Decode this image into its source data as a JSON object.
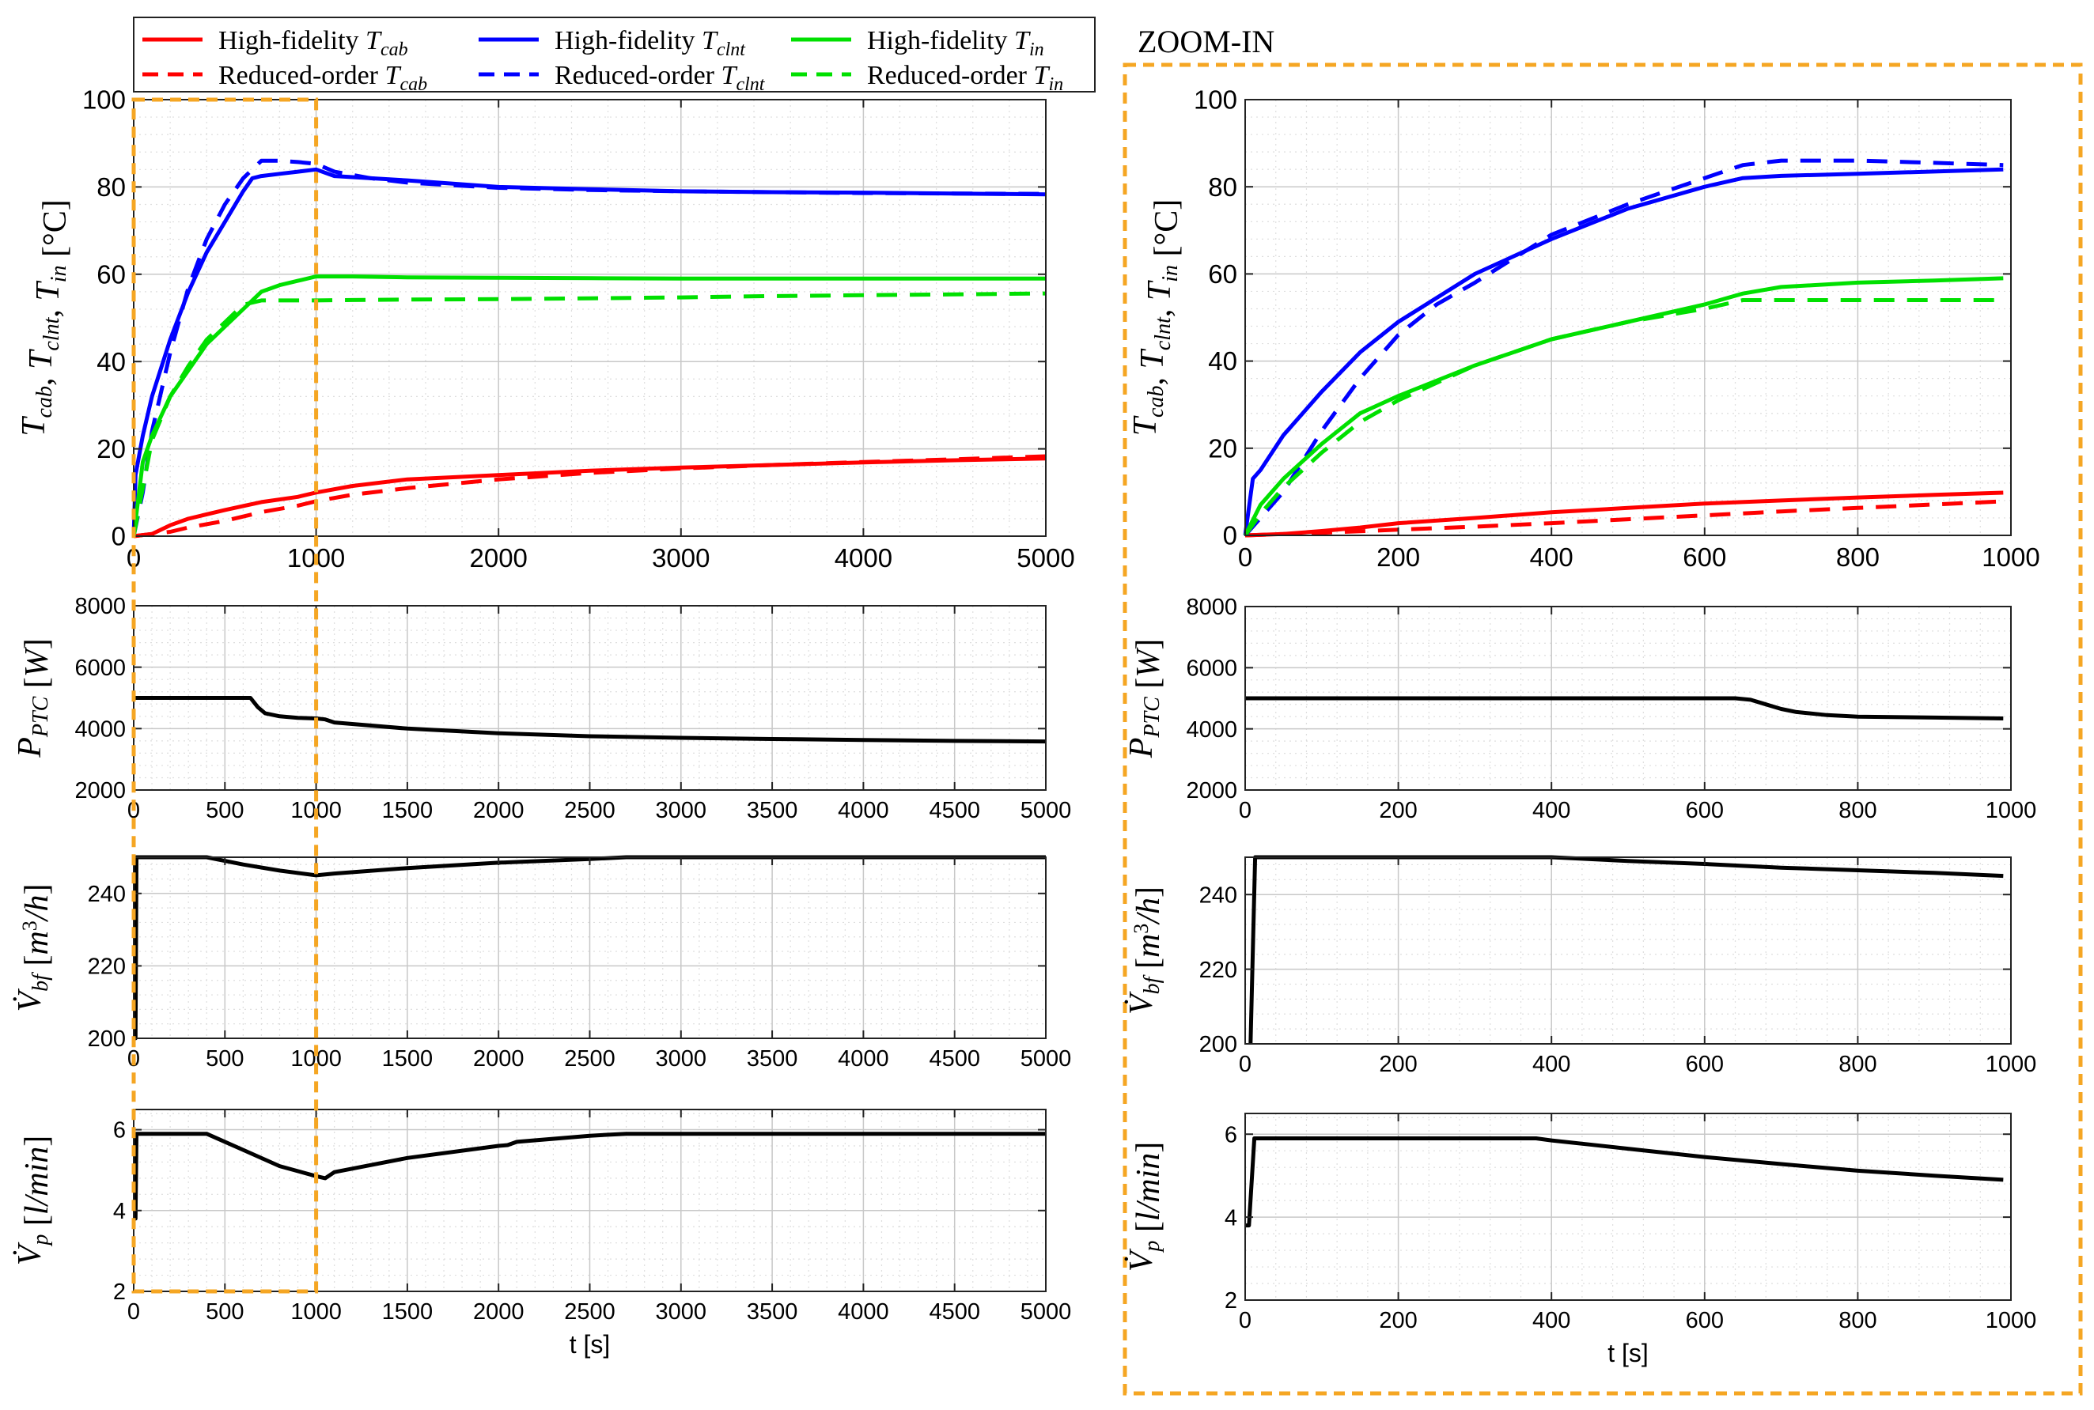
{
  "figure": {
    "zoom_title": "ZOOM-IN",
    "colors": {
      "cab": "#ff0000",
      "clnt": "#0000ff",
      "in": "#00e000",
      "black": "#000000",
      "zoom_box": "#f5a623",
      "grid": "#c8c8c8",
      "minor_grid": "#dedede"
    }
  },
  "legend": {
    "entries": [
      {
        "series": "hf_cab",
        "prefix": "High-fidelity",
        "sym": "T",
        "sub": "cab",
        "style": "solid",
        "color": "#ff0000"
      },
      {
        "series": "hf_clnt",
        "prefix": "High-fidelity",
        "sym": "T",
        "sub": "clnt",
        "style": "solid",
        "color": "#0000ff"
      },
      {
        "series": "hf_in",
        "prefix": "High-fidelity",
        "sym": "T",
        "sub": "in",
        "style": "solid",
        "color": "#00e000"
      },
      {
        "series": "ro_cab",
        "prefix": "Reduced-order",
        "sym": "T",
        "sub": "cab",
        "style": "dashed",
        "color": "#ff0000"
      },
      {
        "series": "ro_clnt",
        "prefix": "Reduced-order",
        "sym": "T",
        "sub": "clnt",
        "style": "dashed",
        "color": "#0000ff"
      },
      {
        "series": "ro_in",
        "prefix": "Reduced-order",
        "sym": "T",
        "sub": "in",
        "style": "dashed",
        "color": "#00e000"
      }
    ]
  },
  "chart_data": [
    {
      "id": "temp_full",
      "type": "line",
      "panel": "left",
      "xlim": [
        0,
        5000
      ],
      "ylim": [
        0,
        100
      ],
      "xticks": [
        0,
        1000,
        2000,
        3000,
        4000,
        5000
      ],
      "yticks": [
        0,
        20,
        40,
        60,
        80,
        100
      ],
      "ylabel": "T_cab, T_clnt, T_in [°C]",
      "xlabel": "",
      "grid": true,
      "series": [
        {
          "name": "High-fidelity T_cab",
          "color": "#ff0000",
          "style": "solid",
          "x": [
            0,
            100,
            200,
            300,
            500,
            700,
            900,
            1000,
            1200,
            1500,
            2000,
            2500,
            3000,
            3500,
            4000,
            4500,
            5000
          ],
          "y": [
            0,
            0.5,
            2.5,
            4,
            6,
            7.8,
            9,
            10,
            11.5,
            13,
            14,
            15,
            15.7,
            16.3,
            16.9,
            17.4,
            17.8
          ]
        },
        {
          "name": "Reduced-order T_cab",
          "color": "#ff0000",
          "style": "dashed",
          "x": [
            0,
            100,
            200,
            300,
            500,
            700,
            900,
            1000,
            1200,
            1500,
            2000,
            2500,
            3000,
            3500,
            4000,
            4500,
            5000
          ],
          "y": [
            0,
            0.5,
            1,
            2,
            3.5,
            5.5,
            7,
            8,
            9.5,
            11,
            13,
            14.5,
            15.5,
            16.3,
            17,
            17.6,
            18.3
          ]
        },
        {
          "name": "High-fidelity T_clnt",
          "color": "#0000ff",
          "style": "solid",
          "x": [
            0,
            10,
            50,
            100,
            200,
            300,
            400,
            500,
            600,
            650,
            700,
            800,
            900,
            1000,
            1100,
            1300,
            1500,
            2000,
            2500,
            3000,
            3500,
            4000,
            4500,
            5000
          ],
          "y": [
            0,
            14,
            23,
            32,
            45,
            56,
            65,
            72,
            79,
            82,
            82.5,
            83,
            83.5,
            84,
            82.5,
            82,
            81.5,
            80,
            79.5,
            79,
            78.8,
            78.7,
            78.5,
            78.3
          ]
        },
        {
          "name": "Reduced-order T_clnt",
          "color": "#0000ff",
          "style": "dashed",
          "x": [
            0,
            50,
            100,
            200,
            300,
            400,
            500,
            600,
            700,
            800,
            900,
            1000,
            1100,
            1300,
            1500,
            2000,
            2500,
            3000,
            3500,
            4000,
            4500,
            5000
          ],
          "y": [
            0,
            10,
            24,
            42,
            57,
            68,
            76,
            82,
            86,
            86,
            85.7,
            85.3,
            83.5,
            82,
            81,
            79.8,
            79.3,
            79,
            78.8,
            78.6,
            78.5,
            78.4
          ]
        },
        {
          "name": "High-fidelity T_in",
          "color": "#00e000",
          "style": "solid",
          "x": [
            0,
            50,
            100,
            200,
            300,
            400,
            500,
            600,
            700,
            800,
            900,
            1000,
            1200,
            1500,
            2000,
            2500,
            3000,
            3500,
            4000,
            4500,
            5000
          ],
          "y": [
            0,
            17,
            23,
            32,
            38,
            44,
            48,
            52,
            56,
            57.5,
            58.5,
            59.5,
            59.5,
            59.3,
            59.2,
            59.1,
            59,
            59,
            59,
            59,
            59
          ]
        },
        {
          "name": "Reduced-order T_in",
          "color": "#00e000",
          "style": "dashed",
          "x": [
            0,
            50,
            100,
            200,
            300,
            400,
            500,
            600,
            700,
            800,
            900,
            1000,
            1200,
            1500,
            2000,
            2500,
            3000,
            3500,
            4000,
            4500,
            5000
          ],
          "y": [
            0,
            11,
            22,
            32,
            39,
            45,
            49,
            53,
            54,
            54,
            54,
            54,
            54.1,
            54.2,
            54.3,
            54.5,
            54.7,
            55,
            55.2,
            55.4,
            55.6
          ]
        }
      ]
    },
    {
      "id": "ptc_full",
      "type": "line",
      "panel": "left",
      "xlim": [
        0,
        5000
      ],
      "ylim": [
        2000,
        8000
      ],
      "xticks": [
        0,
        500,
        1000,
        1500,
        2000,
        2500,
        3000,
        3500,
        4000,
        4500,
        5000
      ],
      "yticks": [
        2000,
        4000,
        6000,
        8000
      ],
      "ylabel": "P_PTC [W]",
      "xlabel": "",
      "grid": true,
      "series": [
        {
          "name": "P_PTC",
          "color": "#000000",
          "style": "solid",
          "x": [
            0,
            640,
            680,
            720,
            800,
            900,
            1000,
            1050,
            1100,
            1500,
            2000,
            2500,
            3000,
            3500,
            4000,
            4500,
            5000
          ],
          "y": [
            5000,
            5000,
            4700,
            4500,
            4400,
            4350,
            4330,
            4300,
            4200,
            4000,
            3850,
            3750,
            3700,
            3660,
            3630,
            3600,
            3580
          ]
        }
      ]
    },
    {
      "id": "vbf_full",
      "type": "line",
      "panel": "left",
      "xlim": [
        0,
        5000
      ],
      "ylim": [
        200,
        250
      ],
      "xticks": [
        0,
        500,
        1000,
        1500,
        2000,
        2500,
        3000,
        3500,
        4000,
        4500,
        5000
      ],
      "yticks": [
        200,
        220,
        240
      ],
      "ylabel": "V̇_bf [m³/h]",
      "xlabel": "",
      "grid": true,
      "series": [
        {
          "name": "V̇_bf",
          "color": "#000000",
          "style": "solid",
          "x": [
            0,
            10,
            15,
            400,
            600,
            800,
            1000,
            1100,
            1500,
            2000,
            2500,
            2700,
            3000,
            5000
          ],
          "y": [
            200,
            200,
            250,
            250,
            248,
            246.3,
            245,
            245.5,
            247,
            248.5,
            249.5,
            250,
            250,
            250
          ]
        }
      ]
    },
    {
      "id": "vp_full",
      "type": "line",
      "panel": "left",
      "xlim": [
        0,
        5000
      ],
      "ylim": [
        2,
        6.5
      ],
      "xticks": [
        0,
        500,
        1000,
        1500,
        2000,
        2500,
        3000,
        3500,
        4000,
        4500,
        5000
      ],
      "yticks": [
        2,
        4,
        6
      ],
      "ylabel": "V̇_p [l/min]",
      "xlabel": "t [s]",
      "grid": true,
      "series": [
        {
          "name": "V̇_p",
          "color": "#000000",
          "style": "solid",
          "x": [
            0,
            10,
            15,
            400,
            600,
            800,
            1000,
            1050,
            1100,
            1500,
            2000,
            2050,
            2100,
            2500,
            2700,
            3000,
            5000
          ],
          "y": [
            3.8,
            3.8,
            5.9,
            5.9,
            5.5,
            5.1,
            4.85,
            4.8,
            4.95,
            5.3,
            5.6,
            5.62,
            5.7,
            5.85,
            5.9,
            5.9,
            5.9
          ]
        }
      ]
    },
    {
      "id": "temp_zoom",
      "type": "line",
      "panel": "right",
      "xlim": [
        0,
        1000
      ],
      "ylim": [
        0,
        100
      ],
      "xticks": [
        0,
        200,
        400,
        600,
        800,
        1000
      ],
      "yticks": [
        0,
        20,
        40,
        60,
        80,
        100
      ],
      "ylabel": "T_cab, T_clnt, T_in [°C]",
      "xlabel": "",
      "grid": true,
      "series": [
        {
          "name": "High-fidelity T_cab",
          "color": "#ff0000",
          "style": "solid",
          "x": [
            0,
            50,
            100,
            150,
            200,
            300,
            400,
            500,
            600,
            700,
            800,
            900,
            990
          ],
          "y": [
            0,
            0.3,
            1,
            1.8,
            2.8,
            4,
            5.3,
            6.3,
            7.3,
            8,
            8.7,
            9.3,
            9.8
          ]
        },
        {
          "name": "Reduced-order T_cab",
          "color": "#ff0000",
          "style": "dashed",
          "x": [
            0,
            50,
            100,
            200,
            300,
            400,
            500,
            600,
            700,
            800,
            900,
            990
          ],
          "y": [
            0,
            0.3,
            0.6,
            1.3,
            2,
            2.8,
            3.7,
            4.6,
            5.5,
            6.3,
            7.1,
            7.8
          ]
        },
        {
          "name": "High-fidelity T_clnt",
          "color": "#0000ff",
          "style": "solid",
          "x": [
            0,
            10,
            20,
            50,
            100,
            150,
            200,
            300,
            400,
            500,
            600,
            650,
            700,
            800,
            900,
            990
          ],
          "y": [
            0,
            13,
            15,
            23,
            33,
            42,
            49,
            60,
            68,
            75,
            80,
            82,
            82.5,
            83,
            83.5,
            84
          ]
        },
        {
          "name": "Reduced-order T_clnt",
          "color": "#0000ff",
          "style": "dashed",
          "x": [
            0,
            50,
            100,
            150,
            200,
            250,
            300,
            400,
            500,
            600,
            650,
            700,
            800,
            900,
            990
          ],
          "y": [
            0,
            10,
            24,
            36,
            46,
            53,
            58,
            69,
            76,
            82,
            85,
            86,
            86,
            85.5,
            85
          ]
        },
        {
          "name": "High-fidelity T_in",
          "color": "#00e000",
          "style": "solid",
          "x": [
            0,
            20,
            50,
            100,
            150,
            200,
            300,
            400,
            500,
            600,
            650,
            700,
            800,
            900,
            990
          ],
          "y": [
            0,
            7,
            13,
            21,
            28,
            32,
            39,
            45,
            49,
            53,
            55.5,
            57,
            58,
            58.5,
            59
          ]
        },
        {
          "name": "Reduced-order T_in",
          "color": "#00e000",
          "style": "dashed",
          "x": [
            0,
            20,
            50,
            100,
            150,
            200,
            300,
            400,
            500,
            600,
            650,
            700,
            800,
            900,
            990
          ],
          "y": [
            0,
            5,
            11,
            19,
            26,
            31,
            39,
            45,
            49,
            52,
            54,
            54,
            54,
            54,
            54
          ]
        }
      ]
    },
    {
      "id": "ptc_zoom",
      "type": "line",
      "panel": "right",
      "xlim": [
        0,
        1000
      ],
      "ylim": [
        2000,
        8000
      ],
      "xticks": [
        0,
        200,
        400,
        600,
        800,
        1000
      ],
      "yticks": [
        2000,
        4000,
        6000,
        8000
      ],
      "ylabel": "P_PTC [W]",
      "xlabel": "",
      "grid": true,
      "series": [
        {
          "name": "P_PTC",
          "color": "#000000",
          "style": "solid",
          "x": [
            0,
            640,
            660,
            680,
            700,
            720,
            760,
            800,
            900,
            990
          ],
          "y": [
            5000,
            5000,
            4950,
            4800,
            4650,
            4550,
            4450,
            4400,
            4370,
            4340
          ]
        }
      ]
    },
    {
      "id": "vbf_zoom",
      "type": "line",
      "panel": "right",
      "xlim": [
        0,
        1000
      ],
      "ylim": [
        200,
        250
      ],
      "xticks": [
        0,
        200,
        400,
        600,
        800,
        1000
      ],
      "yticks": [
        200,
        220,
        240
      ],
      "ylabel": "V̇_bf [m³/h]",
      "xlabel": "",
      "grid": true,
      "series": [
        {
          "name": "V̇_bf",
          "color": "#000000",
          "style": "solid",
          "x": [
            7,
            13,
            400,
            500,
            600,
            700,
            800,
            900,
            990
          ],
          "y": [
            200,
            250,
            250,
            249,
            248.2,
            247.2,
            246.5,
            245.8,
            245
          ]
        }
      ]
    },
    {
      "id": "vp_zoom",
      "type": "line",
      "panel": "right",
      "xlim": [
        0,
        1000
      ],
      "ylim": [
        2,
        6.5
      ],
      "xticks": [
        0,
        200,
        400,
        600,
        800,
        1000
      ],
      "yticks": [
        2,
        4,
        6
      ],
      "ylabel": "V̇_p [l/min]",
      "xlabel": "t [s]",
      "grid": true,
      "series": [
        {
          "name": "V̇_p",
          "color": "#000000",
          "style": "solid",
          "x": [
            0,
            5,
            12,
            380,
            400,
            450,
            500,
            600,
            700,
            800,
            900,
            990
          ],
          "y": [
            3.8,
            3.8,
            5.9,
            5.9,
            5.85,
            5.75,
            5.65,
            5.45,
            5.28,
            5.12,
            5.0,
            4.9
          ]
        }
      ]
    }
  ]
}
